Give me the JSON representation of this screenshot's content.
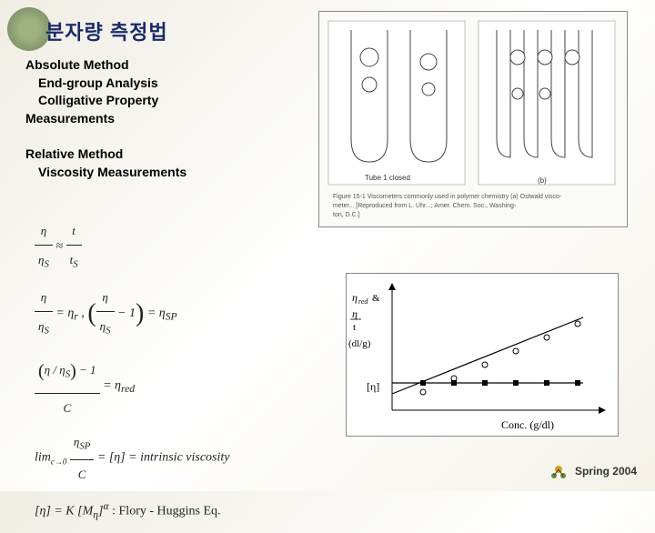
{
  "title": "분자량 측정법",
  "section1_header": "Absolute Method",
  "section1_items": [
    "End-group Analysis",
    "Colligative Property"
  ],
  "section1_tail": "Measurements",
  "section2_header": "Relative Method",
  "section2_items": [
    "Viscosity Measurements"
  ],
  "formulas": {
    "f1": {
      "lhs_num": "η",
      "lhs_den": "η",
      "lhs_den_sub": "S",
      "approx": "≈",
      "rhs_num": "t",
      "rhs_den": "t",
      "rhs_den_sub": "S"
    },
    "f2": {
      "lhs_num": "η",
      "lhs_den": "η",
      "lhs_den_sub": "S",
      "eq": "= η",
      "eq_sub": "r",
      "comma": " ,   ",
      "p_num": "η",
      "p_den": "η",
      "p_den_sub": "S",
      "minus1": " − 1",
      "eq2": " = η",
      "eq2_sub": "SP"
    },
    "f3": {
      "p_num": "η / η",
      "p_num_sub": "S",
      "p_minus": " − 1",
      "den": "C",
      "eq": " = η",
      "eq_sub": "red"
    },
    "f4": {
      "lim": "lim",
      "lim_sub": "c→0",
      "num": "η",
      "num_sub": "SP",
      "den": "C",
      "eq": " = [η] = intrinsic viscosity"
    },
    "f5": {
      "lhs": "[η] = K [M",
      "sub1": "η",
      "rhs": "]",
      "sup": "α",
      "tail": "  : Flory - Huggins Eq."
    }
  },
  "graph": {
    "ylabel1": "η",
    "ylabel1_sub": "red",
    "ylabel_amp": " & ",
    "ylabel2_num": "η",
    "ylabel2_den": "t",
    "yunit": "(dl/g)",
    "intercept": "[η]",
    "xlabel": "Conc. (g/dl)",
    "line1_color": "#000000",
    "line2_color": "#000000",
    "point_color": "#000000",
    "bg": "#ffffff",
    "line1_points": [
      [
        40,
        130
      ],
      [
        80,
        115
      ],
      [
        120,
        100
      ],
      [
        160,
        85
      ],
      [
        200,
        70
      ],
      [
        240,
        55
      ]
    ],
    "line2_points": [
      [
        40,
        120
      ],
      [
        80,
        120
      ],
      [
        120,
        120
      ],
      [
        160,
        120
      ],
      [
        200,
        120
      ],
      [
        240,
        120
      ]
    ]
  },
  "viscometer": {
    "caption_line1": "Figure 15-1  Viscometers commonly used in ...",
    "caption_line2": "(Reproduced from L. Uhr... )",
    "label_tube1": "Tube 1 closed",
    "label_b": "(b)",
    "bg": "#fafaf7"
  },
  "footer": "Spring 2004"
}
